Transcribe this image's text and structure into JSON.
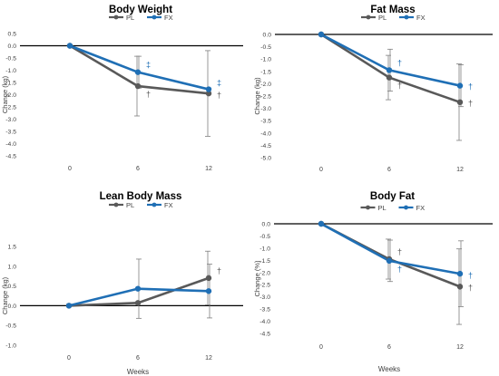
{
  "chart_data": [
    {
      "type": "line",
      "title": "Body Weight",
      "xlabel": "",
      "ylabel": "Change (kg)",
      "categories": [
        "0",
        "6",
        "12"
      ],
      "y_ticks": [
        0.5,
        0.0,
        -0.5,
        -1.0,
        -1.5,
        -2.0,
        -2.5,
        -3.0,
        -3.5,
        -4.0,
        -4.5
      ],
      "y_tick_labels": [
        "0.5",
        "0.0",
        "-0.5",
        "-1.0",
        "-1.5",
        "-2.0",
        "-2.5",
        "-3.0",
        "-3.5",
        "-4.0",
        "-4.5"
      ],
      "ylim": [
        -4.5,
        0.5
      ],
      "legend": "top",
      "series": [
        {
          "name": "PL",
          "color": "#595959",
          "values": [
            0,
            -1.65,
            -1.95
          ],
          "error": [
            0,
            1.22,
            1.75
          ],
          "markers": [
            "",
            "†",
            "†"
          ]
        },
        {
          "name": "FX",
          "color": "#1f6fb5",
          "values": [
            0,
            -1.08,
            -1.78
          ],
          "error": [
            0,
            0.65,
            0.0
          ],
          "markers": [
            "",
            "‡",
            "‡"
          ]
        }
      ]
    },
    {
      "type": "line",
      "title": "Fat Mass",
      "xlabel": "",
      "ylabel": "Change (kg)",
      "categories": [
        "0",
        "6",
        "12"
      ],
      "y_ticks": [
        0.0,
        -0.5,
        -1.0,
        -1.5,
        -2.0,
        -2.5,
        -3.0,
        -3.5,
        -4.0,
        -4.5,
        -5.0
      ],
      "y_tick_labels": [
        "0.0",
        "-0.5",
        "-1.0",
        "-1.5",
        "-2.0",
        "-2.5",
        "-3.0",
        "-3.5",
        "-4.0",
        "-4.5",
        "-5.0"
      ],
      "ylim": [
        -5.0,
        0.0
      ],
      "legend": "top",
      "series": [
        {
          "name": "PL",
          "color": "#595959",
          "values": [
            0,
            -1.75,
            -2.75
          ],
          "error": [
            0,
            0.9,
            1.55
          ],
          "markers": [
            "",
            "†",
            "†"
          ]
        },
        {
          "name": "FX",
          "color": "#1f6fb5",
          "values": [
            0,
            -1.45,
            -2.08
          ],
          "error": [
            0,
            0.85,
            0.85
          ],
          "markers": [
            "",
            "†",
            "†"
          ]
        }
      ]
    },
    {
      "type": "line",
      "title": "Lean Body Mass",
      "xlabel": "Weeks",
      "ylabel": "Change (kg)",
      "categories": [
        "0",
        "6",
        "12"
      ],
      "y_ticks": [
        1.5,
        1.0,
        0.5,
        0.0,
        -0.5,
        -1.0
      ],
      "y_tick_labels": [
        "1.5",
        "1.0",
        "0.5",
        "0.0",
        "-0.5",
        "-1.0"
      ],
      "ylim": [
        -1.0,
        1.5
      ],
      "legend": "top",
      "series": [
        {
          "name": "PL",
          "color": "#595959",
          "values": [
            0,
            0.07,
            0.7
          ],
          "error": [
            0,
            0.0,
            0.68
          ],
          "markers": [
            "",
            "",
            "†"
          ]
        },
        {
          "name": "FX",
          "color": "#1f6fb5",
          "values": [
            0,
            0.43,
            0.37
          ],
          "error": [
            0,
            0.75,
            0.68
          ],
          "markers": [
            "",
            "",
            ""
          ]
        }
      ]
    },
    {
      "type": "line",
      "title": "Body Fat",
      "xlabel": "Weeks",
      "ylabel": "Change (%)",
      "categories": [
        "0",
        "6",
        "12"
      ],
      "y_ticks": [
        0.0,
        -0.5,
        -1.0,
        -1.5,
        -2.0,
        -2.5,
        -3.0,
        -3.5,
        -4.0,
        -4.5
      ],
      "y_tick_labels": [
        "0.0",
        "-0.5",
        "-1.0",
        "-1.5",
        "-2.0",
        "-2.5",
        "-3.0",
        "-3.5",
        "-4.0",
        "-4.5"
      ],
      "ylim": [
        -4.5,
        0.0
      ],
      "legend": "top",
      "series": [
        {
          "name": "PL",
          "color": "#595959",
          "values": [
            0,
            -1.45,
            -2.58
          ],
          "error": [
            0,
            0.82,
            1.55
          ],
          "markers": [
            "",
            "†",
            "†"
          ]
        },
        {
          "name": "FX",
          "color": "#1f6fb5",
          "values": [
            0,
            -1.52,
            -2.05
          ],
          "error": [
            0,
            0.85,
            1.35
          ],
          "markers": [
            "",
            "†",
            "†"
          ]
        }
      ]
    }
  ]
}
